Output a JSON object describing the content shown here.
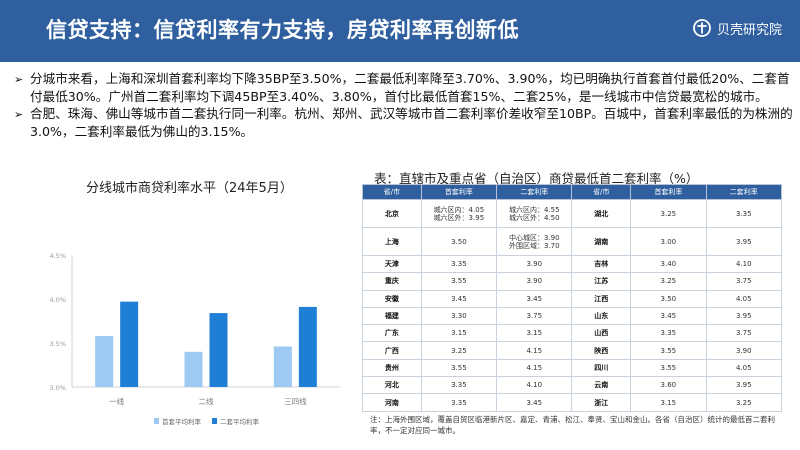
{
  "header": {
    "title": "信贷支持：信贷利率有力支持，房贷利率再创新低",
    "logo_text": "贝壳研究院"
  },
  "bullets": [
    "分城市来看，上海和深圳首套利率均下降35BP至3.50%，二套最低利率降至3.70%、3.90%，均已明确执行首套首付最低20%、二套首付最低30%。广州首二套利率均下调45BP至3.40%、3.80%，首付比最低首套15%、二套25%，是一线城市中信贷最宽松的城市。",
    "合肥、珠海、佛山等城市首二套执行同一利率。杭州、郑州、武汉等城市首二套利率价差收窄至10BP。百城中，首套利率最低的为株洲的3.0%，二套利率最低为佛山的3.15%。"
  ],
  "chart_data": {
    "type": "bar",
    "title": "分线城市商贷利率水平（24年5月）",
    "categories": [
      "一线",
      "二线",
      "三四线"
    ],
    "series": [
      {
        "name": "首套平均利率",
        "color": "#9ec9f2",
        "values": [
          3.58,
          3.4,
          3.46
        ]
      },
      {
        "name": "二套平均利率",
        "color": "#1f7fd6",
        "values": [
          3.97,
          3.84,
          3.91
        ]
      }
    ],
    "ylim": [
      3.0,
      4.5
    ],
    "yticks": [
      3.0,
      3.5,
      4.0,
      4.5
    ],
    "ytick_labels": [
      "3.0%",
      "3.5%",
      "4.0%",
      "4.5%"
    ],
    "grid": false,
    "legend": "bottom"
  },
  "table": {
    "title": "表：直辖市及重点省（自治区）商贷最低首二套利率（%）",
    "headers": [
      "省/市",
      "首套利率",
      "二套利率",
      "省/市",
      "首套利率",
      "二套利率"
    ],
    "rows": [
      [
        "北京",
        "城六区内：4.05\n城六区外：3.95",
        "城六区内：4.55\n城六区外：4.50",
        "湖北",
        "3.25",
        "3.35"
      ],
      [
        "上海",
        "3.50",
        "中心城区：3.90\n外围区域：3.70",
        "湖南",
        "3.00",
        "3.95"
      ],
      [
        "天津",
        "3.35",
        "3.90",
        "吉林",
        "3.40",
        "4.10"
      ],
      [
        "重庆",
        "3.55",
        "3.90",
        "江苏",
        "3.25",
        "3.75"
      ],
      [
        "安徽",
        "3.45",
        "3.45",
        "江西",
        "3.50",
        "4.05"
      ],
      [
        "福建",
        "3.30",
        "3.75",
        "山东",
        "3.45",
        "3.95"
      ],
      [
        "广东",
        "3.15",
        "3.15",
        "山西",
        "3.35",
        "3.75"
      ],
      [
        "广西",
        "3.25",
        "4.15",
        "陕西",
        "3.55",
        "3.90"
      ],
      [
        "贵州",
        "3.55",
        "4.15",
        "四川",
        "3.55",
        "4.05"
      ],
      [
        "河北",
        "3.35",
        "4.10",
        "云南",
        "3.60",
        "3.95"
      ],
      [
        "河南",
        "3.35",
        "3.45",
        "浙江",
        "3.15",
        "3.25"
      ]
    ],
    "note": "注：上海外围区域，覆盖自贸区临港新片区、嘉定、青浦、松江、奉贤、宝山和金山。各省（自治区）统计的最低首二套利率，不一定对应同一城市。"
  }
}
